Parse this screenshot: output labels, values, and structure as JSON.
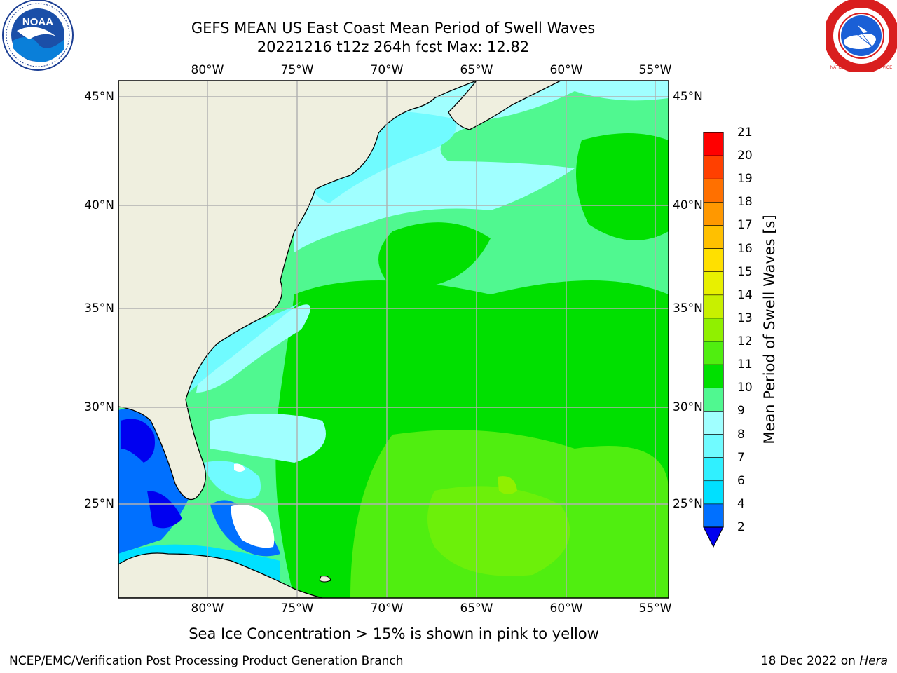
{
  "title": {
    "line1": "GEFS MEAN US East Coast Mean Period of Swell Waves",
    "line2": "20221216 t12z 264h fcst   Max: 12.82"
  },
  "axes": {
    "lon_labels": [
      "80°W",
      "75°W",
      "70°W",
      "65°W",
      "60°W",
      "55°W"
    ],
    "lat_labels": [
      "45°N",
      "40°N",
      "35°N",
      "30°N",
      "25°N"
    ]
  },
  "colorbar": {
    "label": "Mean Period of Swell Waves [s]",
    "ticks": [
      "21",
      "20",
      "19",
      "18",
      "17",
      "16",
      "15",
      "14",
      "13",
      "12",
      "11",
      "10",
      "9",
      "8",
      "7",
      "6",
      "4",
      "2"
    ],
    "colors": {
      "2-4": "#0070ff",
      "4-6": "#00e0ff",
      "6-7": "#30f0ff",
      "7-8": "#70fbff",
      "8-9": "#a0ffff",
      "9-10": "#50f890",
      "10-11": "#00e000",
      "11-12": "#50ee10",
      "12-13": "#90f000",
      "13-14": "#c8f000",
      "14-15": "#e8f000",
      "15-16": "#ffe000",
      "16-17": "#ffc000",
      "17-18": "#ff9800",
      "18-19": "#ff7000",
      "19-20": "#ff4000",
      "20-21": "#ff0000",
      "under": "#0000f0"
    }
  },
  "notes": {
    "ice": "Sea Ice Concentration > 15% is shown in pink to yellow"
  },
  "footer": {
    "left": "NCEP/EMC/Verification Post Processing Product Generation Branch",
    "date": "18 Dec 2022 on ",
    "machine": "Hera"
  },
  "logos": {
    "left": "noaa-logo",
    "left_text": "NOAA",
    "right": "nws-logo",
    "right_text": "NATIONAL WEATHER SERVICE"
  }
}
